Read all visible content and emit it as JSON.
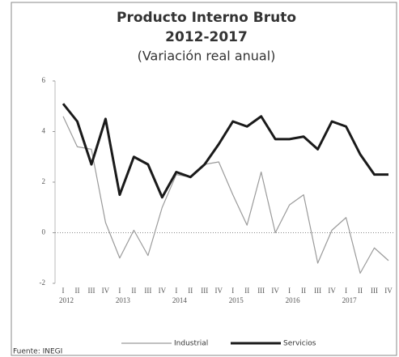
{
  "chart_data": {
    "type": "line",
    "title": [
      "Producto Interno Bruto",
      "2012-2017"
    ],
    "subtitle": "(Variación real anual)",
    "categories": [
      "I",
      "II",
      "III",
      "IV",
      "I",
      "II",
      "III",
      "IV",
      "I",
      "II",
      "III",
      "IV",
      "I",
      "II",
      "III",
      "IV",
      "I",
      "II",
      "III",
      "IV",
      "I",
      "II",
      "III",
      "IV"
    ],
    "years": [
      "2012",
      "2013",
      "2014",
      "2015",
      "2016",
      "2017"
    ],
    "series": [
      {
        "name": "Industrial",
        "color": "#9a9a9a",
        "width": 1.2,
        "values": [
          4.6,
          3.4,
          3.3,
          0.4,
          -1.0,
          0.1,
          -0.9,
          1.0,
          2.3,
          2.2,
          2.7,
          2.8,
          1.5,
          0.3,
          2.4,
          0.0,
          1.1,
          1.5,
          -1.2,
          0.1,
          0.6,
          -1.6,
          -0.6,
          -1.1
        ]
      },
      {
        "name": "Servicios",
        "color": "#1a1a1a",
        "width": 3,
        "values": [
          5.1,
          4.4,
          2.7,
          4.5,
          1.5,
          3.0,
          2.7,
          1.4,
          2.4,
          2.2,
          2.7,
          3.5,
          4.4,
          4.2,
          4.6,
          3.7,
          3.7,
          3.8,
          3.3,
          4.4,
          4.2,
          3.1,
          2.3,
          2.3
        ]
      }
    ],
    "ylim": [
      -2,
      6
    ],
    "yticks": [
      -2,
      0,
      2,
      4,
      6
    ],
    "source": "Fuente: INEGI"
  }
}
